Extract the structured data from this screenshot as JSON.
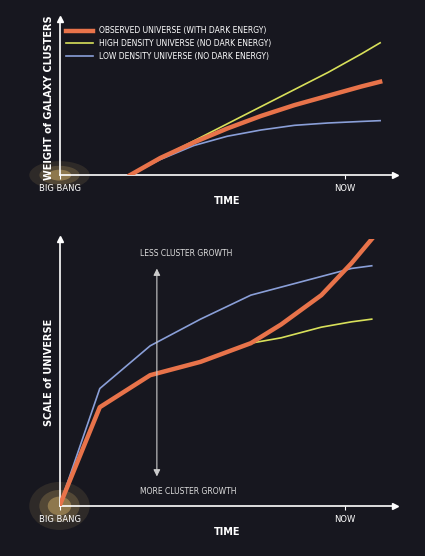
{
  "chart_data": [
    {
      "type": "line",
      "ylabel": "WEIGHT of GALAXY CLUSTERS",
      "xlabel": "TIME",
      "x": [
        2.1,
        3,
        4,
        5,
        6,
        7,
        8,
        9,
        9.55
      ],
      "series": [
        {
          "name": "OBSERVED UNIVERSE (WITH DARK ENERGY)",
          "color": "#e8734a",
          "values": [
            0,
            1.1,
            2.1,
            3.0,
            3.8,
            4.5,
            5.1,
            5.7,
            6.0
          ]
        },
        {
          "name": "HIGH DENSITY UNIVERSE (NO DARK ENERGY)",
          "color": "#d8e05a",
          "values": [
            0,
            1.1,
            2.2,
            3.3,
            4.4,
            5.5,
            6.6,
            7.8,
            8.5
          ]
        },
        {
          "name": "LOW DENSITY UNIVERSE (NO DARK ENERGY)",
          "color": "#8a9fd8",
          "values": [
            0,
            1.0,
            1.9,
            2.5,
            2.9,
            3.2,
            3.35,
            3.45,
            3.5
          ]
        }
      ],
      "xlim": [
        0,
        10
      ],
      "ylim": [
        0,
        10
      ],
      "xticks": [
        {
          "value": 0,
          "label": "BIG BANG"
        },
        {
          "value": 8.5,
          "label": "NOW"
        }
      ],
      "tick_labels": "x",
      "legend": "upper left"
    },
    {
      "type": "line",
      "ylabel": "SCALE of UNIVERSE",
      "xlabel": "TIME",
      "x": [
        0,
        1.2,
        2.7,
        4.2,
        5.7,
        6.6,
        7.8,
        8.7,
        9.3
      ],
      "series": [
        {
          "color": "#e8734a",
          "values": [
            0,
            3.7,
            4.9,
            5.4,
            6.1,
            6.8,
            7.9,
            9.1,
            10.0
          ]
        },
        {
          "color": "#d8e05a",
          "values": [
            0,
            3.7,
            4.9,
            5.4,
            6.1,
            6.3,
            6.7,
            6.9,
            7.0
          ]
        },
        {
          "color": "#8a9fd8",
          "values": [
            0,
            4.4,
            6.0,
            7.0,
            7.9,
            8.2,
            8.6,
            8.9,
            9.0
          ]
        }
      ],
      "xlim": [
        0,
        10
      ],
      "ylim": [
        0,
        10
      ],
      "xticks": [
        {
          "value": 0,
          "label": "BIG BANG"
        },
        {
          "value": 8.5,
          "label": "NOW"
        }
      ],
      "tick_labels": "x",
      "annotations": [
        "LESS CLUSTER GROWTH",
        "MORE CLUSTER GROWTH"
      ]
    }
  ]
}
